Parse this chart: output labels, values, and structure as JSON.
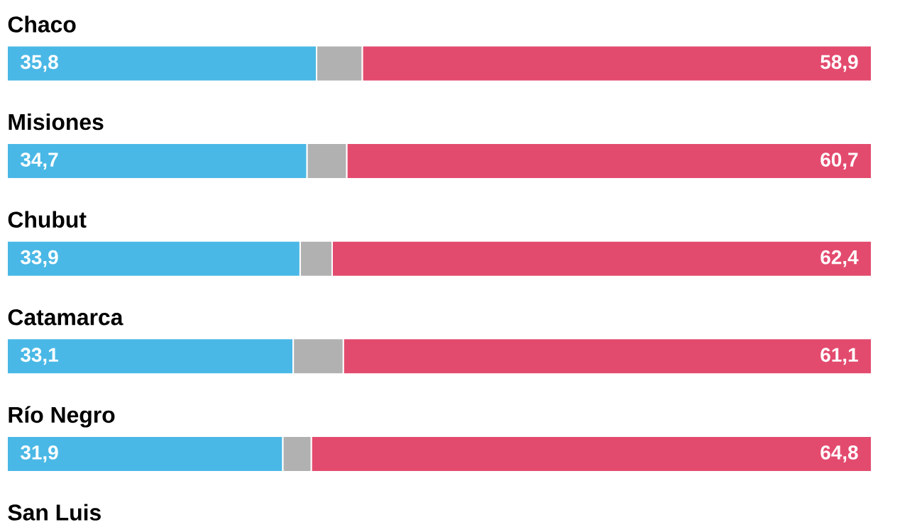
{
  "chart_data": {
    "type": "bar",
    "orientation": "horizontal",
    "stacked": true,
    "xlim": [
      0,
      100
    ],
    "categories": [
      "Chaco",
      "Misiones",
      "Chubut",
      "Catamarca",
      "Río Negro",
      "San Luis"
    ],
    "series": [
      {
        "color": "#4ab8e6",
        "values": [
          35.8,
          34.7,
          33.9,
          33.1,
          31.9,
          null
        ],
        "value_labels": [
          "35,8",
          "34,7",
          "33,9",
          "33,1",
          "31,9",
          null
        ]
      },
      {
        "color": "#b1b1b1",
        "values": [
          5.3,
          4.6,
          3.7,
          5.8,
          3.3,
          null
        ]
      },
      {
        "color": "#e34b6e",
        "values": [
          58.9,
          60.7,
          62.4,
          61.1,
          64.8,
          null
        ],
        "value_labels": [
          "58,9",
          "60,7",
          "62,4",
          "61,1",
          "64,8",
          null
        ]
      }
    ]
  }
}
